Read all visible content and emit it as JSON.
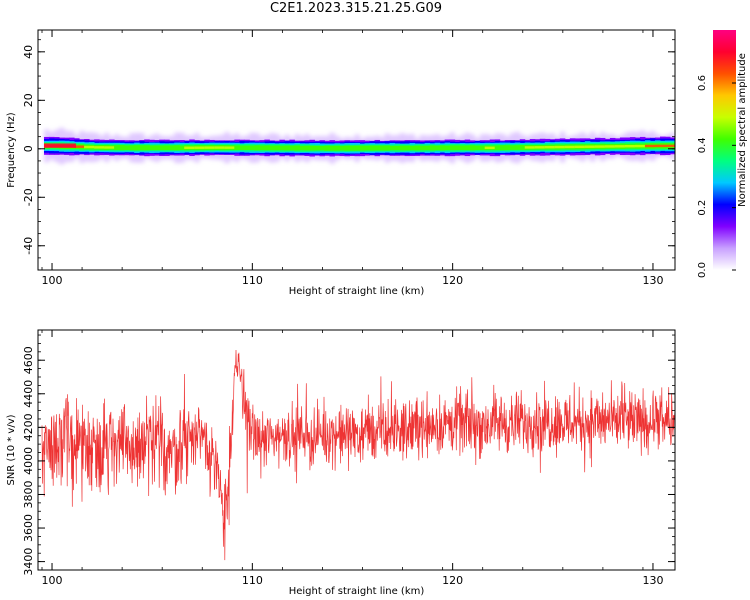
{
  "figure_title": "C2E1.2023.315.21.25.G09",
  "chart_data": [
    {
      "type": "heatmap",
      "title": "",
      "xlabel": "Height of straight line (km)",
      "ylabel": "Frequency (Hz)",
      "xlim": [
        99.3,
        131.1
      ],
      "ylim": [
        -50,
        49
      ],
      "xticks": [
        100,
        110,
        120,
        130
      ],
      "yticks": [
        40,
        20,
        0,
        -20,
        -40
      ],
      "x": [
        100,
        102,
        104,
        106,
        108,
        110,
        112,
        114,
        116,
        118,
        120,
        122,
        124,
        126,
        128,
        130
      ],
      "band_center_hz": [
        1.2,
        0.6,
        0.4,
        0.4,
        0.5,
        0.4,
        0.3,
        0.2,
        0.3,
        0.3,
        0.4,
        0.4,
        0.6,
        0.8,
        1.0,
        1.2
      ],
      "band_core_halfwidth_hz": [
        1.8,
        1.6,
        1.6,
        1.6,
        1.6,
        1.6,
        1.6,
        1.6,
        1.6,
        1.6,
        1.6,
        1.6,
        1.6,
        1.7,
        1.7,
        1.8
      ],
      "band_halo_halfwidth_hz": [
        6,
        5,
        5,
        5,
        5,
        5,
        5,
        5,
        5,
        5,
        5,
        5,
        5,
        5,
        5,
        5
      ],
      "peak_amplitude": [
        0.72,
        0.55,
        0.5,
        0.5,
        0.55,
        0.5,
        0.5,
        0.52,
        0.5,
        0.5,
        0.5,
        0.5,
        0.55,
        0.55,
        0.6,
        0.65
      ],
      "colorbar": {
        "label": "Normalized spectral amplitude",
        "ticks": [
          0.0,
          0.2,
          0.4,
          0.6
        ],
        "range": [
          0.0,
          0.77
        ],
        "colormap": "gist_rainbow_r",
        "colors": [
          "#ffffff",
          "#c8a0ff",
          "#8000ff",
          "#0000ff",
          "#00c8ff",
          "#00ff80",
          "#40ff00",
          "#c8ff00",
          "#ffc800",
          "#ff5000",
          "#ff0030",
          "#ff0080"
        ]
      },
      "grid": false
    },
    {
      "type": "line",
      "title": "",
      "xlabel": "Height of straight line (km)",
      "ylabel": "SNR (10 * v/v)",
      "xlim": [
        99.3,
        131.1
      ],
      "ylim": [
        3350,
        4780
      ],
      "xticks": [
        100,
        110,
        120,
        130
      ],
      "yticks": [
        3400,
        3600,
        3800,
        4000,
        4200,
        4400,
        4600
      ],
      "line_color": "#ee3333",
      "grid": false,
      "series": [
        {
          "x": [
            99.5,
            100.0,
            100.5,
            101.0,
            101.5,
            102.0,
            102.5,
            103.0,
            103.5,
            104.0,
            104.5,
            105.0,
            105.5,
            106.0,
            106.5,
            107.0,
            107.5,
            108.0,
            108.3,
            108.6,
            108.9,
            109.1,
            109.3,
            109.5,
            110.0,
            110.5,
            111.0,
            111.5,
            112.0,
            112.5,
            113.0,
            113.5,
            114.0,
            114.5,
            115.0,
            115.5,
            116.0,
            116.5,
            117.0,
            117.5,
            118.0,
            118.5,
            119.0,
            119.5,
            120.0,
            120.5,
            121.0,
            121.5,
            122.0,
            122.5,
            123.0,
            123.5,
            124.0,
            124.5,
            125.0,
            125.5,
            126.0,
            126.5,
            127.0,
            127.5,
            128.0,
            128.5,
            129.0,
            129.5,
            130.0,
            130.5,
            131.0
          ],
          "mean": [
            4080,
            4100,
            4110,
            4120,
            4100,
            4080,
            4090,
            4110,
            4100,
            4060,
            4090,
            4100,
            4080,
            4060,
            4090,
            4140,
            4180,
            4020,
            3850,
            3720,
            3900,
            4480,
            4580,
            4420,
            4150,
            4120,
            4140,
            4160,
            4150,
            4160,
            4140,
            4150,
            4160,
            4150,
            4170,
            4160,
            4170,
            4160,
            4180,
            4180,
            4200,
            4210,
            4220,
            4210,
            4220,
            4230,
            4220,
            4210,
            4230,
            4230,
            4220,
            4230,
            4240,
            4230,
            4240,
            4230,
            4240,
            4230,
            4240,
            4230,
            4240,
            4230,
            4230,
            4230,
            4240,
            4230,
            4230
          ],
          "spread": [
            240,
            250,
            250,
            250,
            240,
            240,
            240,
            250,
            240,
            250,
            250,
            240,
            240,
            240,
            240,
            200,
            200,
            200,
            200,
            240,
            260,
            160,
            140,
            200,
            160,
            160,
            160,
            160,
            160,
            160,
            160,
            160,
            160,
            160,
            160,
            160,
            170,
            160,
            160,
            160,
            170,
            170,
            170,
            170,
            170,
            170,
            170,
            170,
            170,
            170,
            170,
            170,
            170,
            170,
            170,
            170,
            170,
            170,
            170,
            170,
            170,
            170,
            170,
            170,
            170,
            170,
            170
          ]
        }
      ]
    }
  ]
}
